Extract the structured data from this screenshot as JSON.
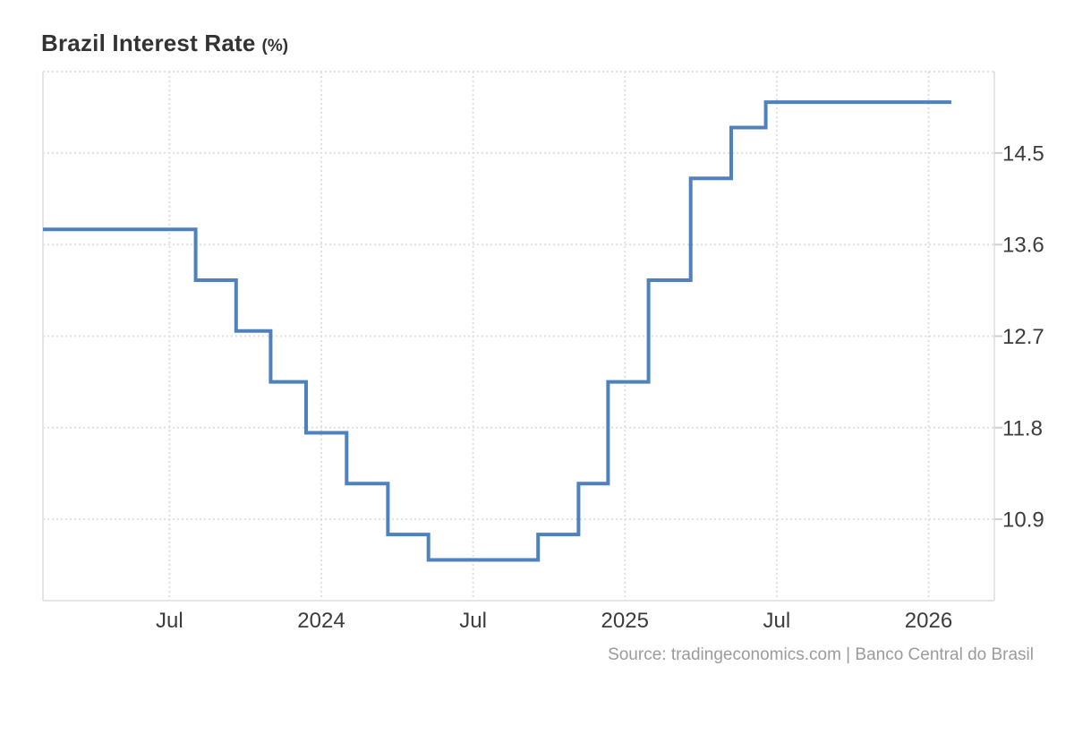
{
  "title": {
    "text": "Brazil Interest Rate",
    "unit": "(%)"
  },
  "source": "Source: tradingeconomics.com | Banco Central do Brasil",
  "colors": {
    "line": "#4f81bd",
    "grid": "#e0e0e0",
    "axis": "#e5e5e5",
    "tick": "#d0d0d0",
    "title_text": "#333333",
    "label_text": "#3c3c3c",
    "source_text": "#9b9b9b",
    "background": "#ffffff"
  },
  "chart_data": {
    "type": "line",
    "step": "after",
    "title": "Brazil Interest Rate (%)",
    "xlabel": "",
    "ylabel": "",
    "grid": true,
    "legend": false,
    "ylim": [
      10.1,
      15.3
    ],
    "xlim": [
      "2023-02-01",
      "2026-03-19"
    ],
    "y_ticks": [
      14.5,
      13.6,
      12.7,
      11.8,
      10.9
    ],
    "x_ticks": [
      {
        "date": "2023-07-01",
        "label": "Jul"
      },
      {
        "date": "2024-01-01",
        "label": "2024"
      },
      {
        "date": "2024-07-01",
        "label": "Jul"
      },
      {
        "date": "2025-01-01",
        "label": "2025"
      },
      {
        "date": "2025-07-01",
        "label": "Jul"
      },
      {
        "date": "2026-01-01",
        "label": "2026"
      }
    ],
    "series": [
      {
        "name": "Brazil Interest Rate (%)",
        "points": [
          [
            "2023-02-01",
            13.75
          ],
          [
            "2023-08-02",
            13.25
          ],
          [
            "2023-09-20",
            12.75
          ],
          [
            "2023-11-01",
            12.25
          ],
          [
            "2023-12-13",
            11.75
          ],
          [
            "2024-01-31",
            11.25
          ],
          [
            "2024-03-20",
            10.75
          ],
          [
            "2024-05-08",
            10.5
          ],
          [
            "2024-09-18",
            10.75
          ],
          [
            "2024-11-06",
            11.25
          ],
          [
            "2024-12-11",
            12.25
          ],
          [
            "2025-01-29",
            13.25
          ],
          [
            "2025-03-19",
            14.25
          ],
          [
            "2025-05-07",
            14.75
          ],
          [
            "2025-06-18",
            15.0
          ],
          [
            "2026-01-28",
            15.0
          ]
        ]
      }
    ]
  }
}
